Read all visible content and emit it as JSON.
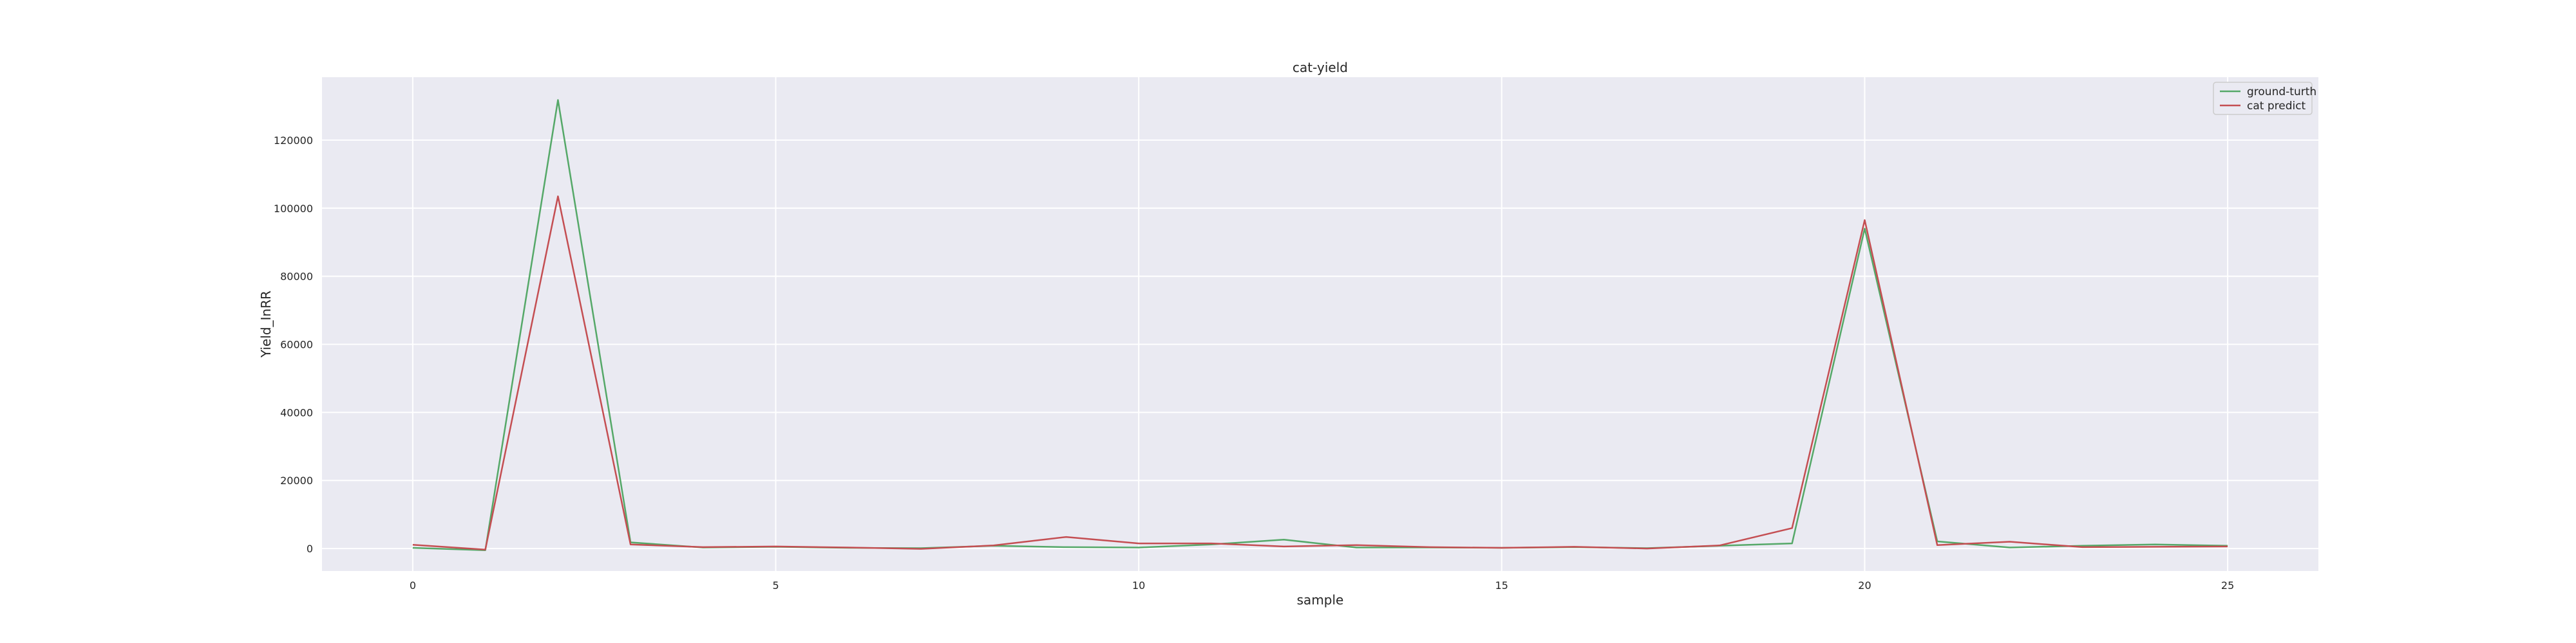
{
  "chart_data": {
    "type": "line",
    "title": "cat-yield",
    "xlabel": "sample",
    "ylabel": "Yield_InRR",
    "xlim": [
      -1.25,
      26.25
    ],
    "ylim": [
      -6600,
      138500
    ],
    "xticks": [
      0,
      5,
      10,
      15,
      20,
      25
    ],
    "yticks": [
      0,
      20000,
      40000,
      60000,
      80000,
      100000,
      120000
    ],
    "grid": true,
    "legend_position": "top-right",
    "x": [
      0,
      1,
      2,
      3,
      4,
      5,
      6,
      7,
      8,
      9,
      10,
      11,
      12,
      13,
      14,
      15,
      16,
      17,
      18,
      19,
      20,
      21,
      22,
      23,
      24,
      25
    ],
    "series": [
      {
        "name": "ground-turth",
        "color": "#55a868",
        "values": [
          200,
          -500,
          131800,
          1800,
          300,
          500,
          200,
          100,
          800,
          400,
          300,
          1200,
          2600,
          300,
          300,
          200,
          400,
          100,
          800,
          1500,
          94000,
          2100,
          300,
          800,
          1200,
          800
        ]
      },
      {
        "name": "cat predict",
        "color": "#c44e52",
        "values": [
          1100,
          -300,
          103500,
          1200,
          400,
          600,
          300,
          -100,
          900,
          3400,
          1500,
          1500,
          600,
          1000,
          400,
          200,
          500,
          0,
          900,
          6000,
          96500,
          1000,
          2000,
          400,
          500,
          600
        ]
      }
    ]
  }
}
